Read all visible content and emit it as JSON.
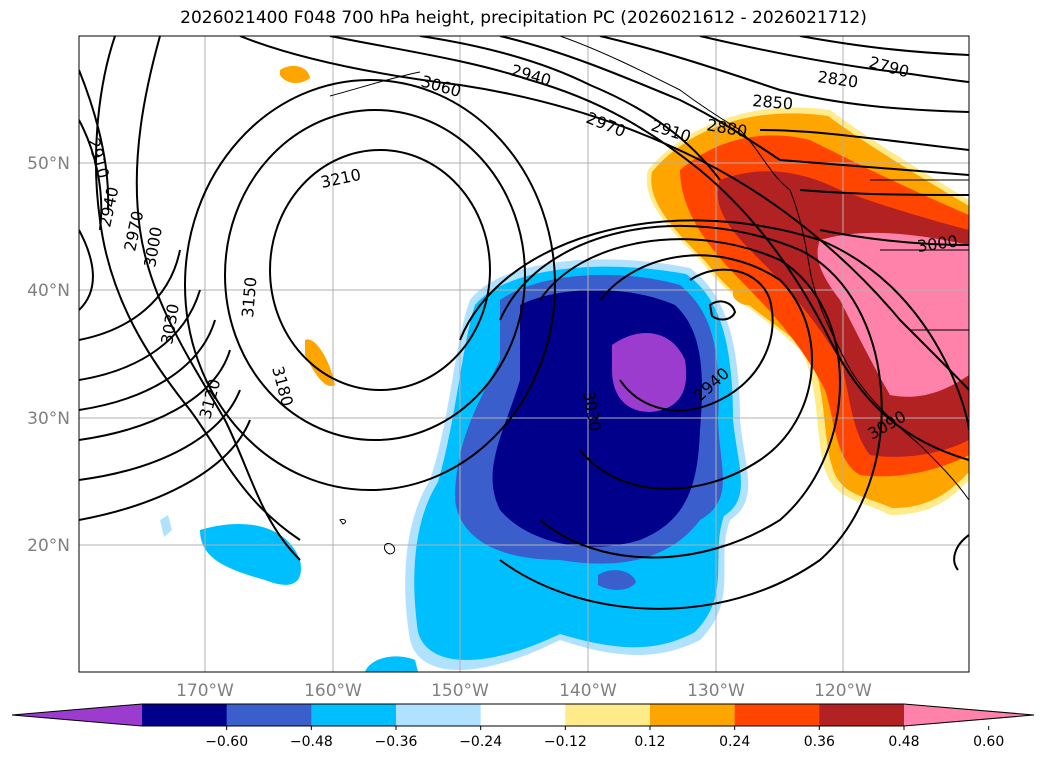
{
  "title": "2026021400 F048 700 hPa height, precipitation PC (2026021612 - 2026021712)",
  "map": {
    "lon_labels": [
      "170°W",
      "160°W",
      "150°W",
      "140°W",
      "130°W",
      "120°W"
    ],
    "lat_labels": [
      "50°N",
      "40°N",
      "30°N",
      "20°N"
    ],
    "contour_labels": [
      "2790",
      "2820",
      "2850",
      "2880",
      "2910",
      "2940",
      "2970",
      "3060",
      "3210",
      "2910",
      "2940",
      "2970",
      "3000",
      "3030",
      "3150",
      "3120",
      "3180",
      "3030",
      "2940",
      "3000",
      "3090"
    ]
  },
  "colorbar": {
    "ticks": [
      "−0.60",
      "−0.48",
      "−0.36",
      "−0.24",
      "−0.12",
      "0.12",
      "0.24",
      "0.36",
      "0.48",
      "0.60"
    ],
    "colors": [
      "#9b3cce",
      "#00008b",
      "#3a5fcd",
      "#00bfff",
      "#b0e2ff",
      "#ffffff",
      "#ffeb8a",
      "#ffa500",
      "#ff4500",
      "#b22222",
      "#ff82ab"
    ]
  }
}
